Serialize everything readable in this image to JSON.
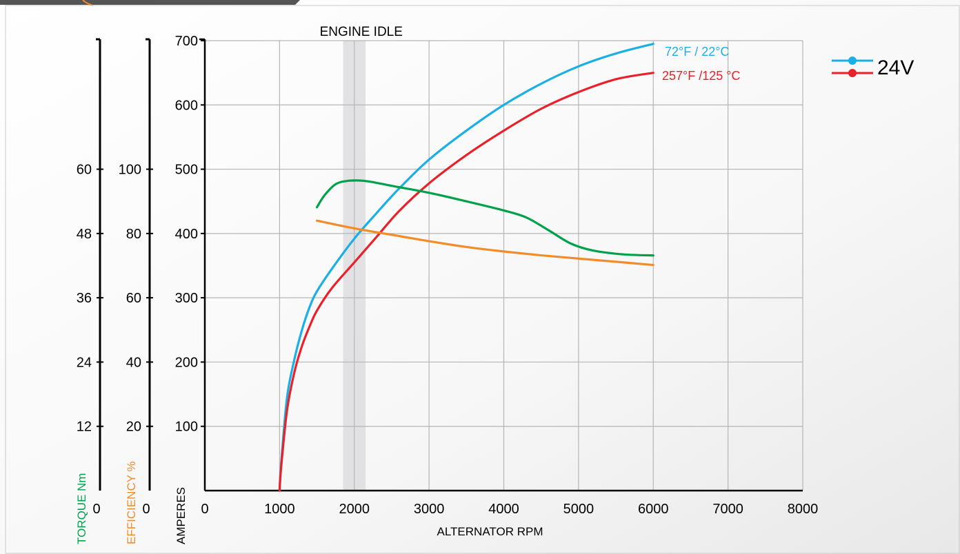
{
  "chart_data": {
    "type": "line",
    "xlabel": "ALTERNATOR RPM",
    "x_ticks": [
      0,
      1000,
      2000,
      3000,
      4000,
      5000,
      6000,
      7000,
      8000
    ],
    "xlim": [
      0,
      8000
    ],
    "grid": true,
    "axes": [
      {
        "label": "AMPERES",
        "ticks": [
          0,
          100,
          200,
          300,
          400,
          500,
          600,
          700
        ],
        "ylim": [
          0,
          700
        ],
        "color": "#000000"
      },
      {
        "label": "EFFICIENCY %",
        "ticks": [
          0,
          20,
          40,
          60,
          80,
          100
        ],
        "ylim": [
          0,
          140
        ],
        "color": "#f28c28"
      },
      {
        "label": "TORQUE Nm",
        "ticks": [
          0,
          12,
          24,
          36,
          48,
          60
        ],
        "ylim": [
          0,
          84
        ],
        "color": "#00a14b"
      }
    ],
    "annotations": [
      {
        "text": "ENGINE IDLE",
        "x_range": [
          1850,
          2150
        ]
      }
    ],
    "legend": {
      "label": "24V",
      "position": "top-right"
    },
    "series": [
      {
        "name": "72°F / 22°C",
        "axis": "AMPERES",
        "color": "#1ab0e6",
        "x": [
          1000,
          1020,
          1100,
          1200,
          1300,
          1400,
          1500,
          1700,
          2000,
          2300,
          2600,
          3000,
          3500,
          4000,
          4500,
          5000,
          5500,
          6000
        ],
        "y": [
          0,
          40,
          145,
          205,
          250,
          285,
          310,
          345,
          392,
          432,
          470,
          515,
          560,
          600,
          633,
          660,
          680,
          695
        ]
      },
      {
        "name": "257°F /125 °C",
        "axis": "AMPERES",
        "color": "#e8212a",
        "x": [
          1000,
          1020,
          1100,
          1200,
          1300,
          1400,
          1500,
          1700,
          2000,
          2300,
          2600,
          3000,
          3500,
          4000,
          4500,
          5000,
          5500,
          6000
        ],
        "y": [
          0,
          35,
          125,
          185,
          225,
          255,
          280,
          315,
          355,
          395,
          435,
          478,
          522,
          560,
          594,
          620,
          640,
          650
        ]
      },
      {
        "name": "TORQUE",
        "axis": "TORQUE Nm",
        "color": "#00a14b",
        "x": [
          1500,
          1600,
          1750,
          1900,
          2050,
          2200,
          2500,
          3000,
          3500,
          4000,
          4300,
          4600,
          4900,
          5200,
          5600,
          6000
        ],
        "y": [
          52.9,
          55.1,
          57.2,
          57.8,
          57.9,
          57.7,
          56.9,
          55.6,
          54.0,
          52.3,
          51.0,
          48.6,
          46.1,
          44.8,
          44.1,
          43.9
        ]
      },
      {
        "name": "EFFICIENCY",
        "axis": "EFFICIENCY %",
        "color": "#f28c28",
        "x": [
          1500,
          2000,
          2500,
          3000,
          3500,
          4000,
          4500,
          5000,
          5500,
          6000
        ],
        "y": [
          84,
          81.6,
          79.6,
          77.6,
          75.8,
          74.4,
          73.2,
          72.2,
          71.2,
          70.2
        ]
      }
    ]
  }
}
